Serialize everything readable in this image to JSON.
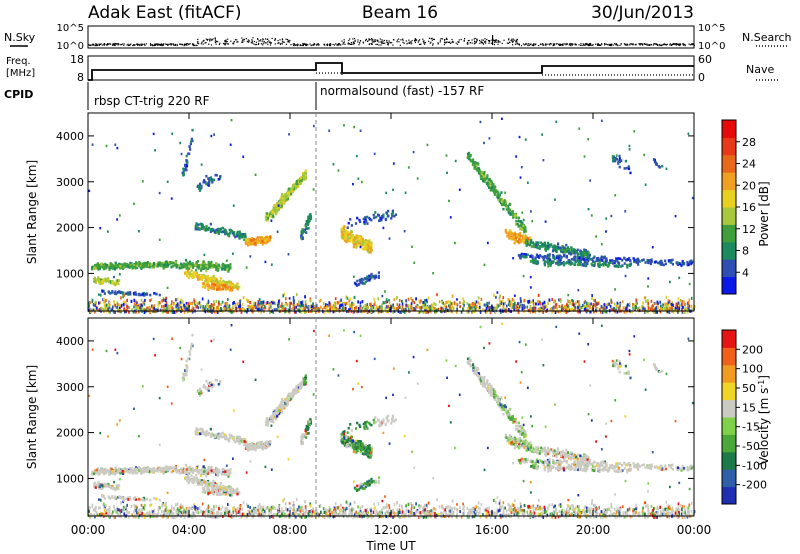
{
  "header": {
    "station": "Adak East (fitACF)",
    "beam": "Beam 16",
    "date": "30/Jun/2013"
  },
  "strips": {
    "nsky_label": "N.Sky",
    "nsearch_label": "N.Search",
    "noise_ticks": [
      "10^5",
      "10^0"
    ],
    "freq_label_1": "Freq.",
    "freq_label_2": "[MHz]",
    "freq_ticks": [
      "18",
      "8"
    ],
    "nave_label": "Nave",
    "nave_ticks": [
      "60",
      "0"
    ],
    "cpid_label": "CPID",
    "cpid_modes": [
      "rbsp CT-trig 220 RF",
      "normalsound (fast) -157 RF"
    ]
  },
  "time_axis": {
    "label": "Time UT",
    "ticks": [
      "00:00",
      "04:00",
      "08:00",
      "12:00",
      "16:00",
      "20:00",
      "00:00"
    ],
    "range_hours": [
      0,
      24
    ],
    "mode_change_hour": 9
  },
  "chart_data": [
    {
      "type": "heatmap",
      "name": "power",
      "ylabel": "Slant Range [km]",
      "yticks": [
        "1000",
        "2000",
        "3000",
        "4000"
      ],
      "ylim": [
        180,
        4500
      ],
      "colorbar": {
        "label": "Power [dB]",
        "ticks": [
          "4",
          "8",
          "12",
          "16",
          "20",
          "24",
          "28"
        ],
        "range": [
          0,
          32
        ],
        "colors": [
          "#0a19e8",
          "#2f4fb3",
          "#1c8a5e",
          "#3f9f3c",
          "#a8c83c",
          "#e8d020",
          "#f0a020",
          "#e86a18",
          "#e83a18",
          "#e60a0a"
        ]
      }
    },
    {
      "type": "heatmap",
      "name": "velocity",
      "ylabel": "Slant Range [km]",
      "yticks": [
        "1000",
        "2000",
        "3000",
        "4000"
      ],
      "ylim": [
        180,
        4500
      ],
      "colorbar": {
        "label": "Velocity [m s",
        "label_sup": "-1",
        "label_close": "]",
        "ticks": [
          "200",
          "100",
          "50",
          "15",
          "-15",
          "-50",
          "-100",
          "-200"
        ],
        "colors": [
          "#1e2fb4",
          "#2f5fa8",
          "#1c7a48",
          "#4aa838",
          "#7fd04a",
          "#cccbc3",
          "#f0d428",
          "#f09a20",
          "#f06018",
          "#e61414"
        ]
      }
    }
  ]
}
